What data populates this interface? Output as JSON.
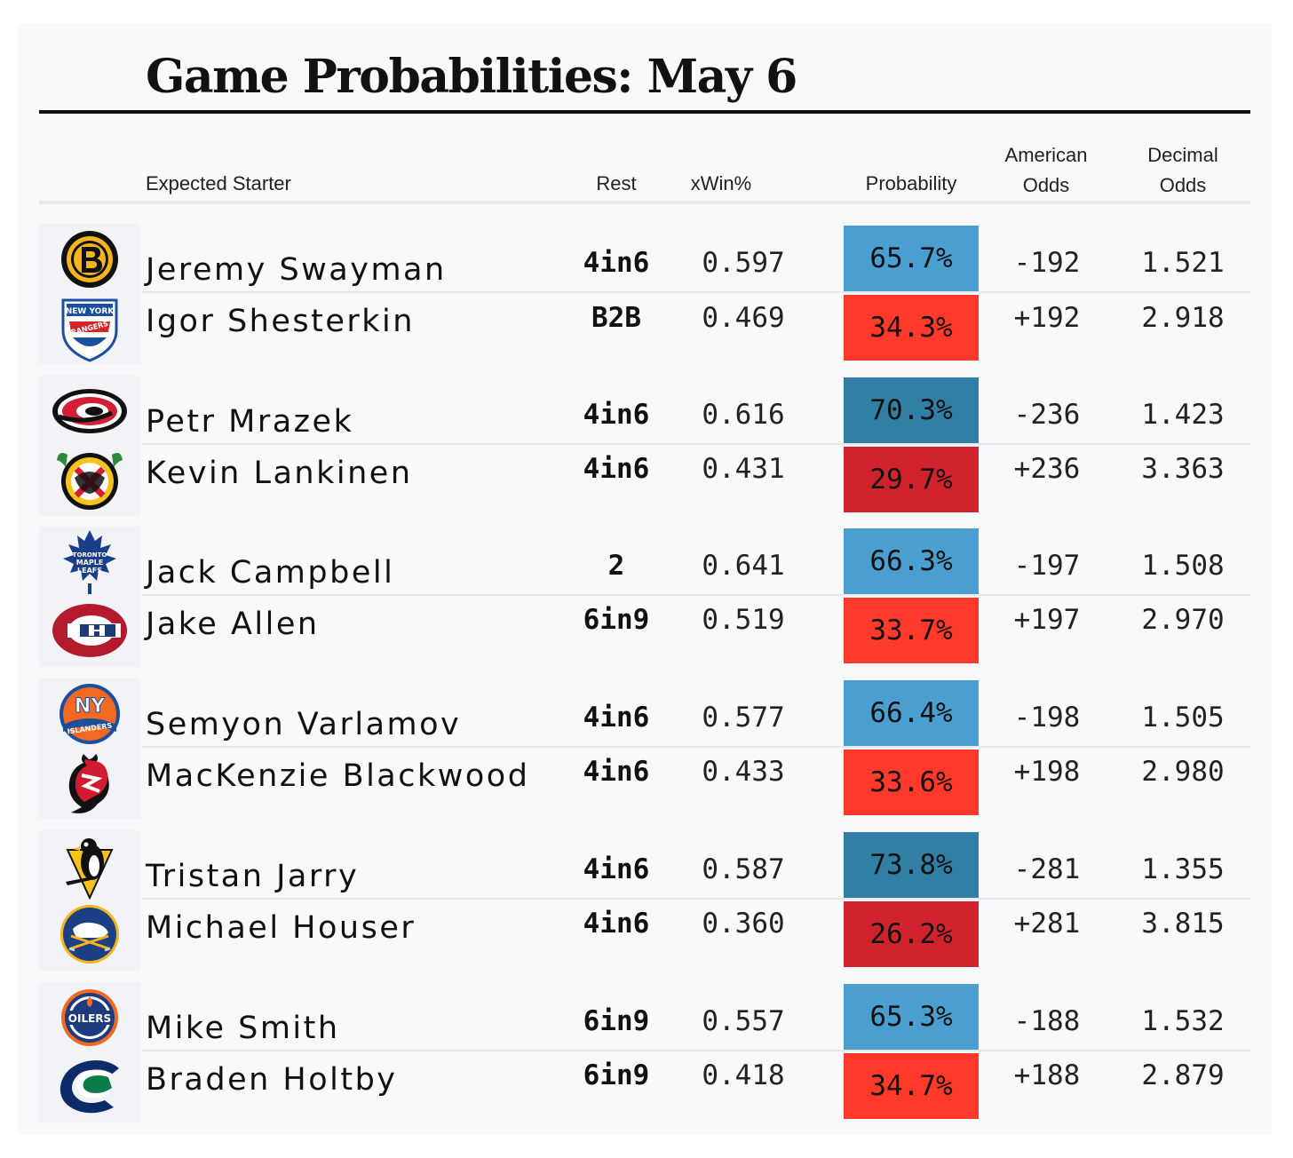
{
  "title": "Game Probabilities: May 6",
  "columns": {
    "starter": "Expected Starter",
    "rest": "Rest",
    "xwin": "xWin%",
    "probability": "Probability",
    "american_1": "American",
    "american_2": "Odds",
    "decimal_1": "Decimal",
    "decimal_2": "Odds"
  },
  "colors": {
    "fav_light": "#4a9fd0",
    "fav_dark": "#327fa5",
    "dog_bright": "#ff3a2a",
    "dog_dark": "#d1232e"
  },
  "games": [
    {
      "rows": [
        {
          "team_icon": "boston-bruins-logo-icon",
          "starter": "Jeremy Swayman",
          "rest": "4in6",
          "xwin": "0.597",
          "probability": "65.7%",
          "prob_color": "#4a9fd0",
          "american": "-192",
          "decimal": "1.521"
        },
        {
          "team_icon": "new-york-rangers-logo-icon",
          "starter": "Igor Shesterkin",
          "rest": "B2B",
          "xwin": "0.469",
          "probability": "34.3%",
          "prob_color": "#ff3a2a",
          "american": "+192",
          "decimal": "2.918"
        }
      ]
    },
    {
      "rows": [
        {
          "team_icon": "carolina-hurricanes-logo-icon",
          "starter": "Petr Mrazek",
          "rest": "4in6",
          "xwin": "0.616",
          "probability": "70.3%",
          "prob_color": "#327fa5",
          "american": "-236",
          "decimal": "1.423"
        },
        {
          "team_icon": "chicago-blackhawks-logo-icon",
          "starter": "Kevin Lankinen",
          "rest": "4in6",
          "xwin": "0.431",
          "probability": "29.7%",
          "prob_color": "#d1232e",
          "american": "+236",
          "decimal": "3.363"
        }
      ]
    },
    {
      "rows": [
        {
          "team_icon": "toronto-maple-leafs-logo-icon",
          "starter": "Jack Campbell",
          "rest": "2",
          "xwin": "0.641",
          "probability": "66.3%",
          "prob_color": "#4a9fd0",
          "american": "-197",
          "decimal": "1.508"
        },
        {
          "team_icon": "montreal-canadiens-logo-icon",
          "starter": "Jake Allen",
          "rest": "6in9",
          "xwin": "0.519",
          "probability": "33.7%",
          "prob_color": "#ff3a2a",
          "american": "+197",
          "decimal": "2.970"
        }
      ]
    },
    {
      "rows": [
        {
          "team_icon": "new-york-islanders-logo-icon",
          "starter": "Semyon Varlamov",
          "rest": "4in6",
          "xwin": "0.577",
          "probability": "66.4%",
          "prob_color": "#4a9fd0",
          "american": "-198",
          "decimal": "1.505"
        },
        {
          "team_icon": "new-jersey-devils-logo-icon",
          "starter": "MacKenzie Blackwood",
          "rest": "4in6",
          "xwin": "0.433",
          "probability": "33.6%",
          "prob_color": "#ff3a2a",
          "american": "+198",
          "decimal": "2.980"
        }
      ]
    },
    {
      "rows": [
        {
          "team_icon": "pittsburgh-penguins-logo-icon",
          "starter": "Tristan Jarry",
          "rest": "4in6",
          "xwin": "0.587",
          "probability": "73.8%",
          "prob_color": "#327fa5",
          "american": "-281",
          "decimal": "1.355"
        },
        {
          "team_icon": "buffalo-sabres-logo-icon",
          "starter": "Michael Houser",
          "rest": "4in6",
          "xwin": "0.360",
          "probability": "26.2%",
          "prob_color": "#d1232e",
          "american": "+281",
          "decimal": "3.815"
        }
      ]
    },
    {
      "rows": [
        {
          "team_icon": "edmonton-oilers-logo-icon",
          "starter": "Mike Smith",
          "rest": "6in9",
          "xwin": "0.557",
          "probability": "65.3%",
          "prob_color": "#4a9fd0",
          "american": "-188",
          "decimal": "1.532"
        },
        {
          "team_icon": "vancouver-canucks-logo-icon",
          "starter": "Braden Holtby",
          "rest": "6in9",
          "xwin": "0.418",
          "probability": "34.7%",
          "prob_color": "#ff3a2a",
          "american": "+188",
          "decimal": "2.879"
        }
      ]
    }
  ],
  "logo_text": {
    "rangers_top": "NEW YORK",
    "rangers_bottom": "RANGERS",
    "leafs_1": "TORONTO",
    "leafs_2": "MAPLE",
    "leafs_3": "LEAFS",
    "islanders_ny": "NY",
    "islanders_name": "ISLANDERS",
    "oilers": "OILERS"
  }
}
